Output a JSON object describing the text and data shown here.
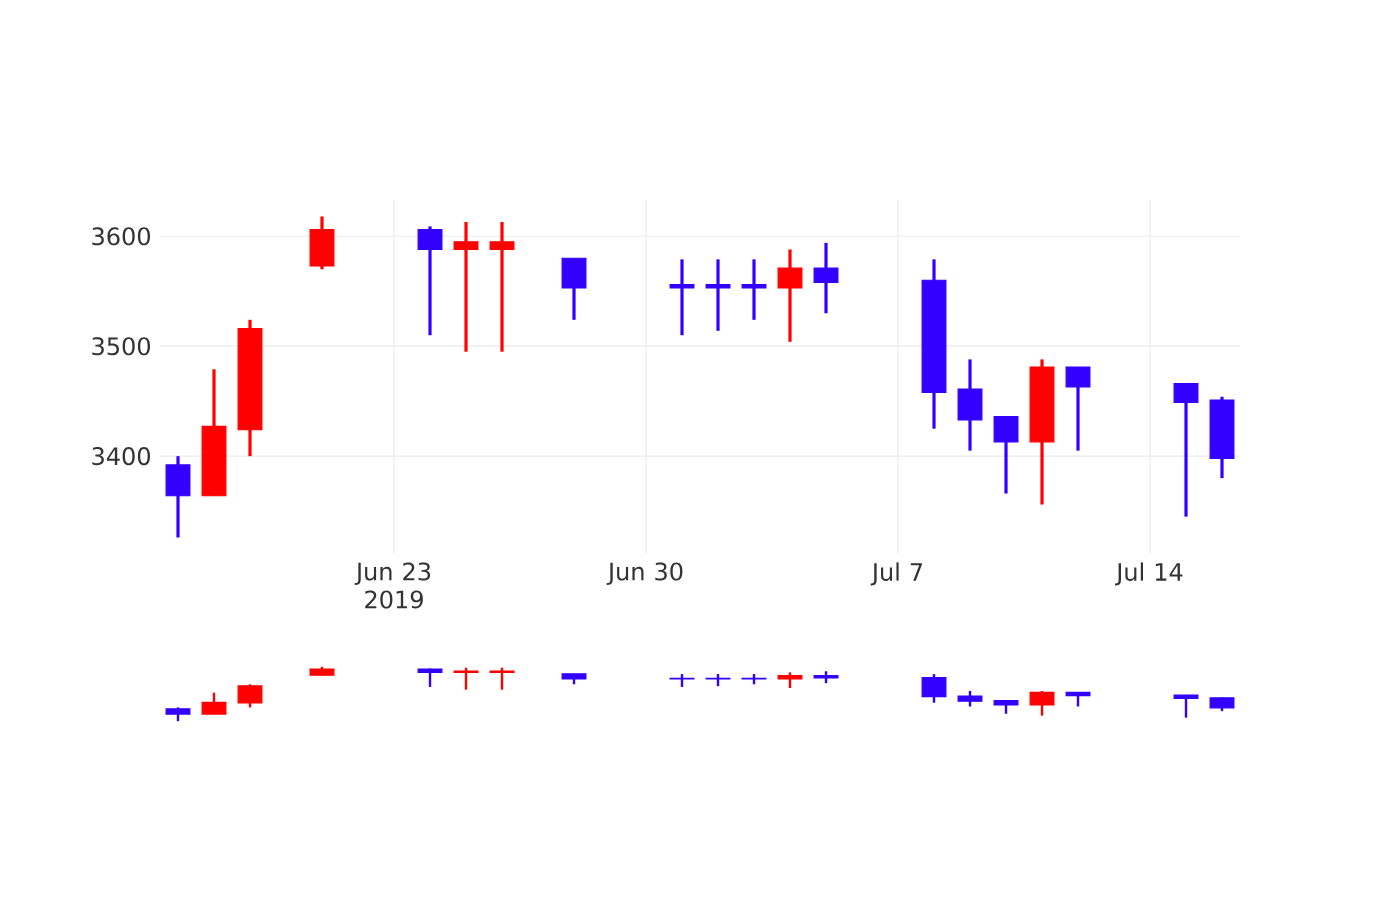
{
  "chart_data": {
    "type": "candlestick",
    "x": [
      "2019-06-17",
      "2019-06-18",
      "2019-06-19",
      "2019-06-21",
      "2019-06-24",
      "2019-06-25",
      "2019-06-26",
      "2019-06-28",
      "2019-07-01",
      "2019-07-02",
      "2019-07-03",
      "2019-07-04",
      "2019-07-05",
      "2019-07-08",
      "2019-07-09",
      "2019-07-10",
      "2019-07-11",
      "2019-07-12",
      "2019-07-15",
      "2019-07-16"
    ],
    "ohlc": [
      [
        3392,
        3400,
        3326,
        3364
      ],
      [
        3364,
        3479,
        3364,
        3427
      ],
      [
        3424,
        3524,
        3400,
        3516
      ],
      [
        3573,
        3618,
        3570,
        3606
      ],
      [
        3606,
        3609,
        3510,
        3588
      ],
      [
        3588,
        3613,
        3495,
        3595
      ],
      [
        3588,
        3613,
        3495,
        3595
      ],
      [
        3580,
        3580,
        3524,
        3553
      ],
      [
        3556,
        3579,
        3510,
        3553
      ],
      [
        3556,
        3579,
        3514,
        3553
      ],
      [
        3556,
        3579,
        3524,
        3553
      ],
      [
        3553,
        3588,
        3504,
        3571
      ],
      [
        3571,
        3594,
        3530,
        3558
      ],
      [
        3560,
        3579,
        3425,
        3458
      ],
      [
        3461,
        3488,
        3405,
        3433
      ],
      [
        3436,
        3436,
        3366,
        3413
      ],
      [
        3413,
        3488,
        3356,
        3481
      ],
      [
        3481,
        3481,
        3405,
        3463
      ],
      [
        3466,
        3466,
        3345,
        3449
      ],
      [
        3451,
        3454,
        3380,
        3398
      ]
    ],
    "colors": [
      "#3300ff",
      "#ff0000",
      "#ff0000",
      "#ff0000",
      "#3300ff",
      "#ff0000",
      "#ff0000",
      "#3300ff",
      "#3300ff",
      "#3300ff",
      "#3300ff",
      "#ff0000",
      "#3300ff",
      "#3300ff",
      "#3300ff",
      "#3300ff",
      "#ff0000",
      "#3300ff",
      "#3300ff",
      "#3300ff"
    ],
    "xlim": [
      "2019-06-16T12:00",
      "2019-07-16T12:00"
    ],
    "xticks": [
      {
        "value": "2019-06-23",
        "label": "Jun 23 2019"
      },
      {
        "value": "2019-06-30",
        "label": "Jun 30"
      },
      {
        "value": "2019-07-07",
        "label": "Jul 7"
      },
      {
        "value": "2019-07-14",
        "label": "Jul 14"
      }
    ],
    "ylim": [
      3311,
      3633
    ],
    "yticks": [
      3400,
      3500,
      3600
    ],
    "grid": true
  }
}
